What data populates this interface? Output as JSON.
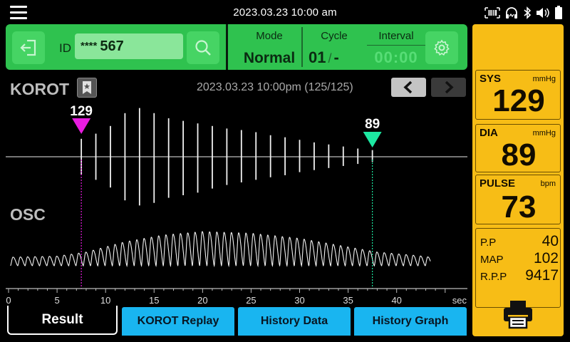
{
  "status": {
    "datetime": "2023.03.23  10:00 am"
  },
  "toolbar": {
    "id_label": "ID",
    "id_mask": "****",
    "id_value": "567",
    "mode_label": "Mode",
    "mode_value": "Normal",
    "cycle_label": "Cycle",
    "cycle_value": "01",
    "cycle_sep": "/",
    "cycle_total": "-",
    "interval_label": "Interval",
    "interval_value": "00:00"
  },
  "korot": {
    "title": "KOROT",
    "record_info": "2023.03.23 10:00pm (125/125)",
    "sys_marker": "129",
    "dia_marker": "89",
    "sys_marker_color": "#e81ce0",
    "dia_marker_color": "#1de8a2"
  },
  "osc": {
    "title": "OSC"
  },
  "chart_data": {
    "type": "line",
    "xlabel": "sec",
    "xlim": [
      0,
      47
    ],
    "ticks": [
      "0",
      "5",
      "10",
      "15",
      "20",
      "25",
      "30",
      "35",
      "40"
    ],
    "sys_time": 7.5,
    "dia_time": 37.5,
    "korot_spikes": [
      {
        "t": 7.5,
        "up": 0.35,
        "down": 0.35
      },
      {
        "t": 9.0,
        "up": 0.45,
        "down": 0.45
      },
      {
        "t": 10.5,
        "up": 0.6,
        "down": 0.6
      },
      {
        "t": 12.0,
        "up": 0.85,
        "down": 0.85
      },
      {
        "t": 13.5,
        "up": 0.95,
        "down": 0.95
      },
      {
        "t": 15.0,
        "up": 0.85,
        "down": 0.9
      },
      {
        "t": 16.5,
        "up": 0.75,
        "down": 0.8
      },
      {
        "t": 18.0,
        "up": 0.7,
        "down": 0.75
      },
      {
        "t": 19.5,
        "up": 0.65,
        "down": 0.7
      },
      {
        "t": 21.0,
        "up": 0.6,
        "down": 0.62
      },
      {
        "t": 22.5,
        "up": 0.55,
        "down": 0.55
      },
      {
        "t": 24.0,
        "up": 0.52,
        "down": 0.5
      },
      {
        "t": 25.5,
        "up": 0.48,
        "down": 0.45
      },
      {
        "t": 27.0,
        "up": 0.42,
        "down": 0.4
      },
      {
        "t": 28.5,
        "up": 0.38,
        "down": 0.36
      },
      {
        "t": 30.0,
        "up": 0.33,
        "down": 0.3
      },
      {
        "t": 31.5,
        "up": 0.28,
        "down": 0.26
      },
      {
        "t": 33.0,
        "up": 0.24,
        "down": 0.22
      },
      {
        "t": 34.5,
        "up": 0.2,
        "down": 0.18
      },
      {
        "t": 36.0,
        "up": 0.16,
        "down": 0.14
      },
      {
        "t": 37.5,
        "up": 0.13,
        "down": 0.1
      }
    ],
    "osc_beats": {
      "start": 0.2,
      "end": 43.5,
      "period": 0.75,
      "envelope": [
        [
          0,
          0.25
        ],
        [
          5,
          0.28
        ],
        [
          8,
          0.4
        ],
        [
          12,
          0.7
        ],
        [
          16,
          0.9
        ],
        [
          20,
          1.0
        ],
        [
          25,
          0.95
        ],
        [
          30,
          0.8
        ],
        [
          35,
          0.55
        ],
        [
          38,
          0.4
        ],
        [
          42,
          0.3
        ],
        [
          43.5,
          0.25
        ]
      ]
    }
  },
  "tabs": {
    "result": "Result",
    "korot_replay": "KOROT Replay",
    "history_data": "History Data",
    "history_graph": "History Graph"
  },
  "results": {
    "sys_label": "SYS",
    "sys_unit": "mmHg",
    "sys_value": "129",
    "dia_label": "DIA",
    "dia_unit": "mmHg",
    "dia_value": "89",
    "pulse_label": "PULSE",
    "pulse_unit": "bpm",
    "pulse_value": "73",
    "pp_label": "P.P",
    "pp_value": "40",
    "map_label": "MAP",
    "map_value": "102",
    "rpp_label": "R.P.P",
    "rpp_value": "9417"
  },
  "icons": {
    "menu": "menu-icon",
    "exit": "exit-icon",
    "search": "search-icon",
    "settings": "gear-icon",
    "bookmark": "bookmark-star-icon",
    "prev": "chevron-left-icon",
    "next": "chevron-right-icon",
    "print": "printer-icon",
    "barcode": "barcode-icon",
    "headphone": "headphone-icon",
    "bluetooth": "bluetooth-icon",
    "volume": "volume-icon",
    "battery": "battery-icon"
  },
  "colors": {
    "toolbar_green": "#2fc24f",
    "panel_yellow": "#f7bd16",
    "tab_blue": "#19b5f0"
  }
}
